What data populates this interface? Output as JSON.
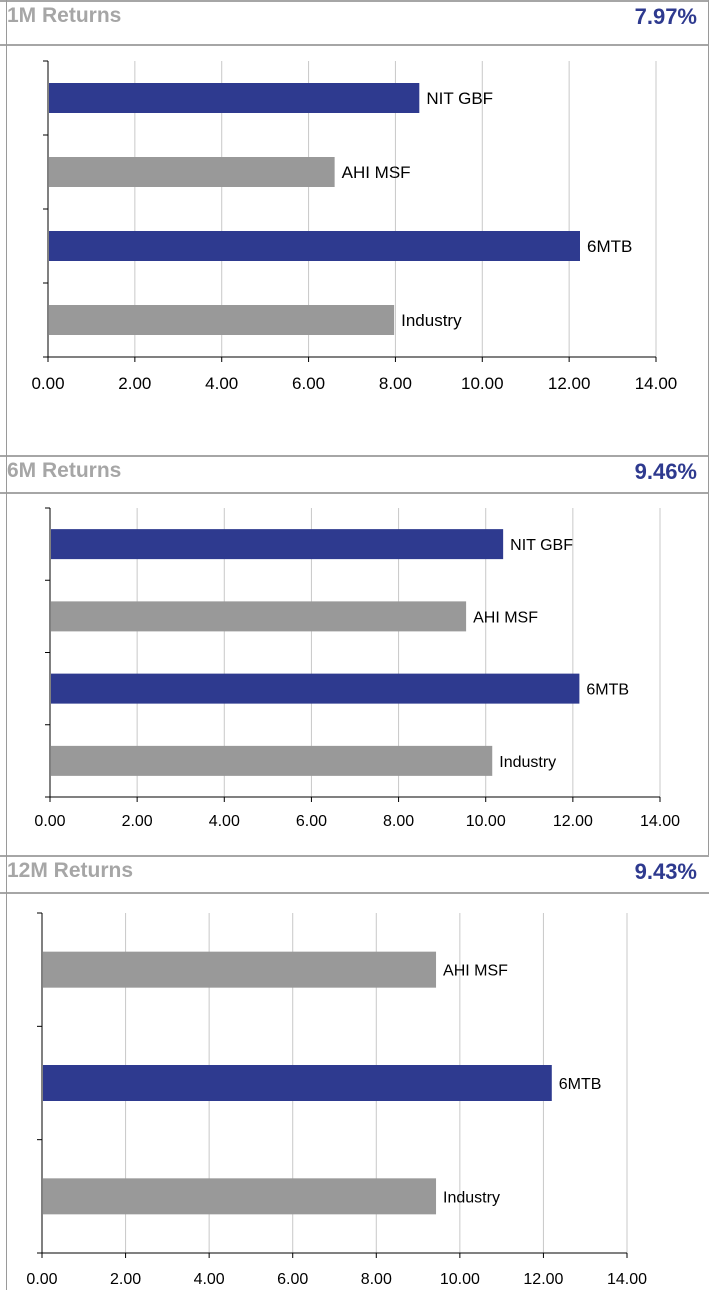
{
  "colors": {
    "navy": "#2e3a8f",
    "gray": "#999999",
    "header_gray": "#a6a6a6",
    "grid": "#c8c8c8",
    "axis": "#000000"
  },
  "panels": [
    {
      "title": "1M Returns",
      "value": "7.97%"
    },
    {
      "title": "6M Returns",
      "value": "9.46%"
    },
    {
      "title": "12M Returns",
      "value": "9.43%"
    }
  ],
  "chart_data": [
    {
      "type": "bar",
      "orientation": "horizontal",
      "categories": [
        "NIT GBF",
        "AHI MSF",
        "6MTB",
        "Industry"
      ],
      "values": [
        8.55,
        6.6,
        12.25,
        7.97
      ],
      "bar_colors": [
        "navy",
        "gray",
        "navy",
        "gray"
      ],
      "xlim": [
        0,
        14
      ],
      "tick_labels": [
        "0.00",
        "2.00",
        "4.00",
        "6.00",
        "8.00",
        "10.00",
        "12.00",
        "14.00"
      ],
      "grid": true
    },
    {
      "type": "bar",
      "orientation": "horizontal",
      "categories": [
        "NIT GBF",
        "AHI MSF",
        "6MTB",
        "Industry"
      ],
      "values": [
        10.4,
        9.55,
        12.15,
        10.15
      ],
      "bar_colors": [
        "navy",
        "gray",
        "navy",
        "gray"
      ],
      "xlim": [
        0,
        14
      ],
      "tick_labels": [
        "0.00",
        "2.00",
        "4.00",
        "6.00",
        "8.00",
        "10.00",
        "12.00",
        "14.00"
      ],
      "grid": true
    },
    {
      "type": "bar",
      "orientation": "horizontal",
      "categories": [
        "AHI MSF",
        "6MTB",
        "Industry"
      ],
      "values": [
        9.43,
        12.2,
        9.43
      ],
      "bar_colors": [
        "gray",
        "navy",
        "gray"
      ],
      "xlim": [
        0,
        14
      ],
      "tick_labels": [
        "0.00",
        "2.00",
        "4.00",
        "6.00",
        "8.00",
        "10.00",
        "12.00",
        "14.00"
      ],
      "grid": true
    }
  ]
}
